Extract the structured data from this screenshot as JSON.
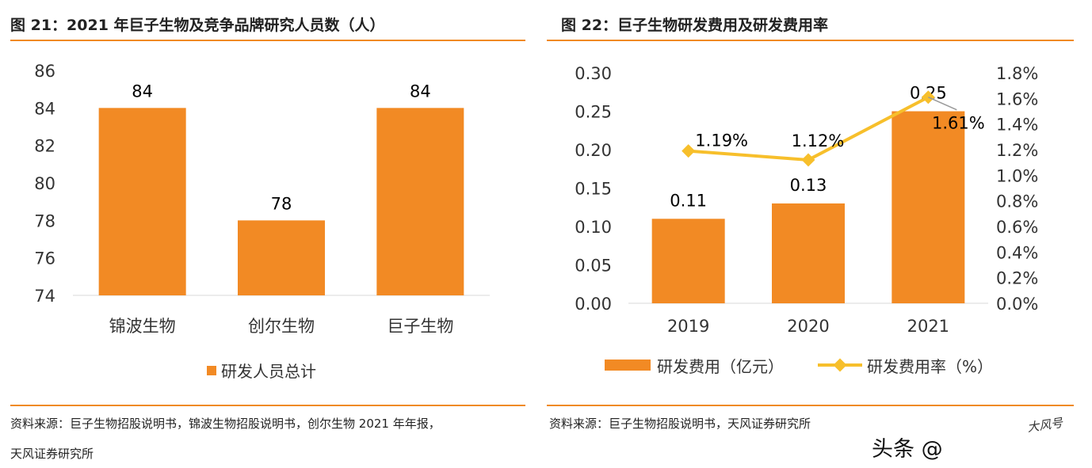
{
  "left": {
    "title": "图 21：2021 年巨子生物及竞争品牌研究人员数（人）",
    "source_line1": "资料来源：巨子生物招股说明书，锦波生物招股说明书，创尔生物 2021 年年报，",
    "source_line2": "天风证券研究所"
  },
  "right": {
    "title": "图 22：巨子生物研发费用及研发费用率",
    "source_line1": "资料来源：巨子生物招股说明书，天风证券研究所"
  },
  "watermark": {
    "text": "头条 @",
    "seal": "大风号"
  },
  "colors": {
    "bar": "#F28A24",
    "line": "#F7BF2B",
    "rule": "#F08A24"
  },
  "chart_data": [
    {
      "type": "bar",
      "categories": [
        "锦波生物",
        "创尔生物",
        "巨子生物"
      ],
      "series": [
        {
          "name": "研发人员总计",
          "values": [
            84,
            78,
            84
          ]
        }
      ],
      "data_labels": [
        "84",
        "78",
        "84"
      ],
      "ylim": [
        74,
        86
      ],
      "yticks": [
        "86",
        "84",
        "82",
        "80",
        "78",
        "76",
        "74"
      ],
      "legend_position": "bottom",
      "grid": false
    },
    {
      "type": "bar+line",
      "categories": [
        "2019",
        "2020",
        "2021"
      ],
      "series": [
        {
          "name": "研发费用（亿元）",
          "type": "bar",
          "axis": "left",
          "values": [
            0.11,
            0.13,
            0.25
          ],
          "data_labels": [
            "0.11",
            "0.13",
            "0.25"
          ]
        },
        {
          "name": "研发费用率（%）",
          "type": "line",
          "axis": "right",
          "values": [
            1.19,
            1.12,
            1.61
          ],
          "data_labels": [
            "1.19%",
            "1.12%",
            "1.61%"
          ]
        }
      ],
      "ylim_left": [
        0,
        0.3
      ],
      "yticks_left": [
        "0.30",
        "0.25",
        "0.20",
        "0.15",
        "0.10",
        "0.05",
        "0.00"
      ],
      "ylim_right": [
        0,
        1.8
      ],
      "yticks_right": [
        "1.8%",
        "1.6%",
        "1.4%",
        "1.2%",
        "1.0%",
        "0.8%",
        "0.6%",
        "0.4%",
        "0.2%",
        "0.0%"
      ],
      "legend_position": "bottom",
      "grid": false
    }
  ]
}
